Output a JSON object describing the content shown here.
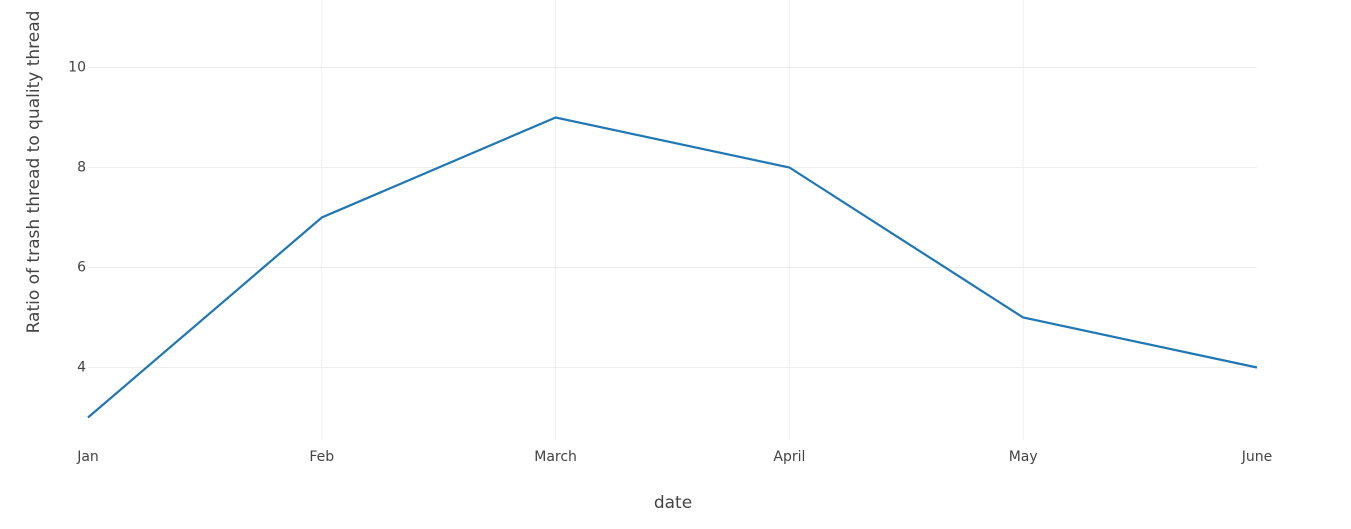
{
  "chart_data": {
    "type": "line",
    "x_label": "date",
    "y_label": "Ratio of trash thread to quality thread",
    "categories": [
      "Jan",
      "Feb",
      "March",
      "April",
      "May",
      "June"
    ],
    "series": [
      {
        "name": "Ratio",
        "color": "#1f77b4",
        "values": [
          3,
          7,
          9,
          8,
          5,
          4
        ]
      }
    ],
    "ylim": [
      2.55,
      11.35
    ],
    "yticks": [
      4,
      6,
      8,
      10
    ],
    "grid": true
  }
}
